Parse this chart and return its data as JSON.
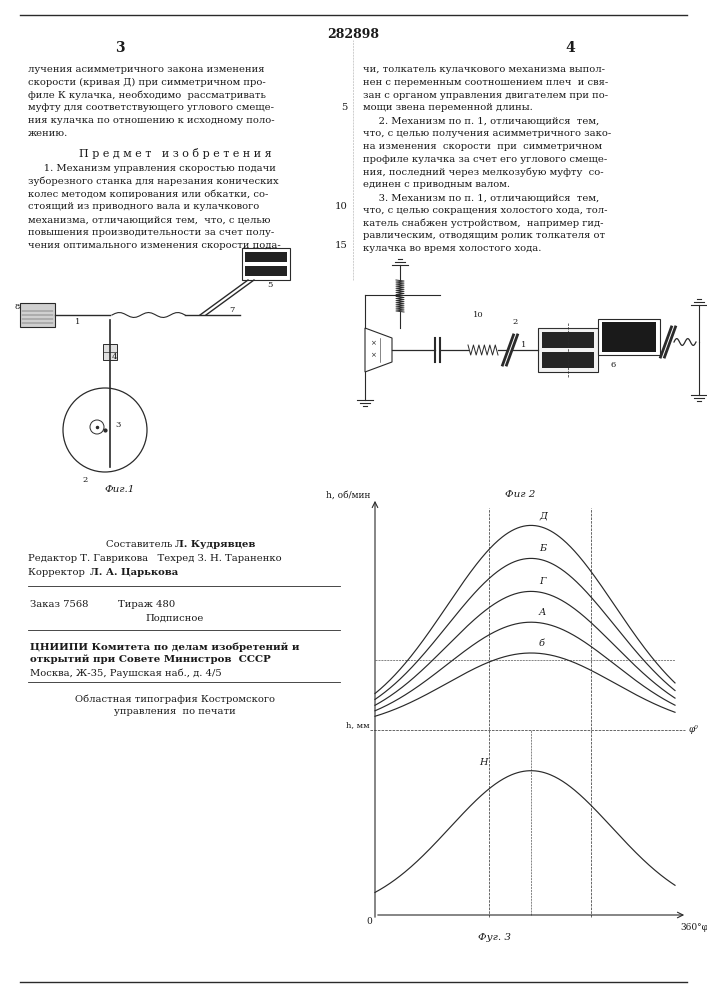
{
  "patent_number": "282898",
  "page_left": "3",
  "page_right": "4",
  "text_col1_lines": [
    "лучения асимметричного закона изменения",
    "скорости (кривая Д) при симметричном про-",
    "филе К кулачка, необходимо  рассматривать",
    "муфту для соответствующего углового смеще-",
    "ния кулачка по отношению к исходному поло-",
    "жению."
  ],
  "predmet_title": "П р е д м е т   и з о б р е т е н и я",
  "text_col1_body": [
    "     1. Механизм управления скоростью подачи",
    "зуборезного станка для нарезания конических",
    "колес методом копирования или обкатки, со-",
    "стоящий из приводного вала и кулачкового",
    "механизма, отличающийся тем,  что, с целью",
    "повышения производительности за счет полу-",
    "чения оптимального изменения скорости пода-"
  ],
  "text_col2_lines": [
    "чи, толкатель кулачкового механизма выпол-",
    "нен с переменным соотношением плеч  и свя-",
    "зан с органом управления двигателем при по-",
    "мощи звена переменной длины.",
    "     2. Механизм по п. 1, отличающийся  тем,",
    "что, с целью получения асимметричного зако-",
    "на изменения  скорости  при  симметричном",
    "профиле кулачка за счет его углового смеще-",
    "ния, последний через мелкозубую муфту  со-",
    "единен с приводным валом.",
    "     3. Механизм по п. 1, отличающийся  тем,",
    "что, с целью сокращения холостого хода, тол-",
    "катель снабжен устройством,  например гид-",
    "равлическим, отводящим ролик толкателя от",
    "кулачка во время холостого хода."
  ],
  "fig1_label": "Фиг.1",
  "fig2_label": "Фиг 2",
  "fig3_label": "Фуг. 3",
  "graph_ylabel_top": "h, об/мин",
  "graph_ylabel_bot": "h, мм",
  "graph_xmax_label": "360°φ⁰",
  "graph_phi_label": "φ⁰",
  "graph_curves_top": [
    "Д",
    "Б",
    "Г",
    "А",
    "Б"
  ],
  "graph_curve_bot": "Н",
  "composer_line": "Составитель Л. Кудрявцев",
  "editor_line1": "Редактор Т. Гаврикова   Техред З. Н. Тараненко",
  "editor_line2": "Корректор Л. А. Царькова",
  "order_left": "Заказ 7568",
  "order_center": "Подписное",
  "order_right": "Тираж 480",
  "institute_name": "ЦНИИПИ Комитета по делам изобретений и",
  "institute_line2": "открытий при Совете Министров  СССР",
  "institute_line3": "Москва, Ж-35, Раушская наб., д. 4/5",
  "printing_line1": "Областная типография Костромского",
  "printing_line2": "управления  по печати",
  "bg_color": "#ffffff",
  "text_color": "#1a1a1a",
  "line_color": "#2a2a2a"
}
